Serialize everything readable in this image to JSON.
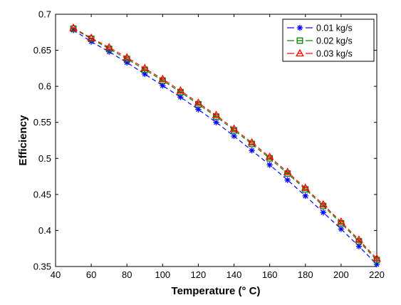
{
  "chart_data": {
    "type": "line",
    "xlabel": "Temperature (° C)",
    "ylabel": "Efficiency",
    "xlim": [
      40,
      220
    ],
    "ylim": [
      0.35,
      0.7
    ],
    "xticks": [
      "40",
      "60",
      "80",
      "100",
      "120",
      "140",
      "160",
      "180",
      "200",
      "220"
    ],
    "yticks": [
      "0.35",
      "0.4",
      "0.45",
      "0.5",
      "0.55",
      "0.6",
      "0.65",
      "0.7"
    ],
    "grid": false,
    "legend_position": "top-right",
    "x": [
      50,
      60,
      70,
      80,
      90,
      100,
      110,
      120,
      130,
      140,
      150,
      160,
      170,
      180,
      190,
      200,
      210,
      220
    ],
    "series": [
      {
        "name": "0.01 kg/s",
        "color": "#0000ff",
        "marker": "asterisk",
        "line_style": "dashed",
        "values": [
          0.678,
          0.662,
          0.648,
          0.633,
          0.617,
          0.601,
          0.585,
          0.568,
          0.55,
          0.531,
          0.511,
          0.491,
          0.47,
          0.448,
          0.425,
          0.402,
          0.378,
          0.353
        ]
      },
      {
        "name": "0.02 kg/s",
        "color": "#008000",
        "marker": "square",
        "line_style": "dashed",
        "values": [
          0.68,
          0.666,
          0.652,
          0.638,
          0.623,
          0.608,
          0.592,
          0.575,
          0.558,
          0.539,
          0.52,
          0.5,
          0.479,
          0.457,
          0.434,
          0.41,
          0.385,
          0.359
        ]
      },
      {
        "name": "0.03 kg/s",
        "color": "#ff0000",
        "marker": "triangle",
        "line_style": "dashed",
        "values": [
          0.681,
          0.667,
          0.654,
          0.64,
          0.625,
          0.61,
          0.594,
          0.577,
          0.56,
          0.541,
          0.522,
          0.502,
          0.481,
          0.459,
          0.436,
          0.412,
          0.387,
          0.361
        ]
      }
    ]
  }
}
